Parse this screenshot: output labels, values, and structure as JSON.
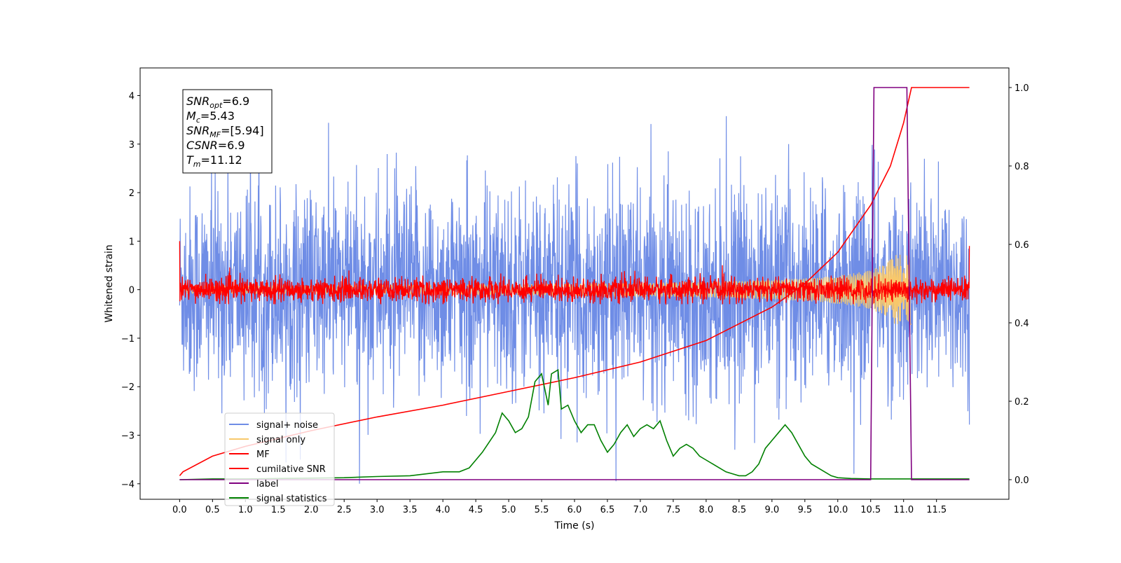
{
  "chart_data": {
    "type": "line",
    "xlabel": "Time (s)",
    "ylabel": "Whitened strain",
    "title": "",
    "xlim": [
      -0.6,
      12.6
    ],
    "ylim": [
      -4.32,
      4.57
    ],
    "y2lim": [
      -0.05,
      1.05
    ],
    "x_ticks": [
      "0.0",
      "0.5",
      "1.0",
      "1.5",
      "2.0",
      "2.5",
      "3.0",
      "3.5",
      "4.0",
      "4.5",
      "5.0",
      "5.5",
      "6.0",
      "6.5",
      "7.0",
      "7.5",
      "8.0",
      "8.5",
      "9.0",
      "9.5",
      "10.0",
      "10.5",
      "11.0",
      "11.5"
    ],
    "y_ticks": [
      "4",
      "3",
      "2",
      "1",
      "0",
      "−1",
      "−2",
      "−3",
      "−4"
    ],
    "y2_ticks": [
      "1.0",
      "0.8",
      "0.6",
      "0.4",
      "0.2",
      "0.0"
    ],
    "annotation": {
      "lines": [
        {
          "base": "SNR",
          "sub": "opt",
          "value": "=6.9"
        },
        {
          "base": "M",
          "sub": "c",
          "value": "=5.43"
        },
        {
          "base": "SNR",
          "sub": "MF",
          "value": "=[5.94]"
        },
        {
          "base": "CSNR",
          "sub": "",
          "value": "=6.9"
        },
        {
          "base": "T",
          "sub": "m",
          "value": "=11.12"
        }
      ]
    },
    "legend": {
      "placement": "lower-left",
      "entries": [
        {
          "label": "signal+ noise",
          "color": "#6f8de6"
        },
        {
          "label": "signal only",
          "color": "#f8c86b"
        },
        {
          "label": "MF",
          "color": "#ff0000"
        },
        {
          "label": "cumilative SNR",
          "color": "#ff0000"
        },
        {
          "label": "label",
          "color": "#800080"
        },
        {
          "label": "signal statistics",
          "color": "#008000"
        }
      ]
    },
    "series": [
      {
        "name": "signal+ noise",
        "axis": "left",
        "color": "#6f8de6",
        "x_range": [
          0.0,
          12.0
        ],
        "approx_std": 1.0,
        "approx_range": [
          -4.0,
          4.2
        ]
      },
      {
        "name": "signal only",
        "axis": "left",
        "color": "#f8c86b",
        "x_range": [
          0.0,
          11.12
        ],
        "approx_peak_amplitude": 0.8
      },
      {
        "name": "MF",
        "axis": "left",
        "color": "#ff0000",
        "x_range": [
          0.0,
          12.0
        ],
        "approx_std": 0.15,
        "approx_range": [
          -0.3,
          1.0
        ]
      },
      {
        "name": "cumilative SNR",
        "axis": "right",
        "color": "#ff0000",
        "x": [
          0.0,
          0.05,
          0.5,
          1.0,
          2.0,
          3.0,
          4.0,
          5.0,
          6.0,
          7.0,
          8.0,
          9.0,
          9.5,
          10.0,
          10.5,
          10.8,
          11.0,
          11.12,
          12.0
        ],
        "values": [
          0.01,
          0.02,
          0.06,
          0.085,
          0.125,
          0.16,
          0.19,
          0.225,
          0.26,
          0.3,
          0.355,
          0.44,
          0.5,
          0.58,
          0.7,
          0.8,
          0.91,
          1.0,
          1.0
        ]
      },
      {
        "name": "label",
        "axis": "right",
        "color": "#800080",
        "x": [
          0.0,
          10.5,
          10.55,
          11.05,
          11.12,
          12.0
        ],
        "values": [
          0.0,
          0.0,
          1.0,
          1.0,
          0.0,
          0.0
        ]
      },
      {
        "name": "signal statistics",
        "axis": "right",
        "color": "#008000",
        "x": [
          0.0,
          0.5,
          1.0,
          1.5,
          2.0,
          2.5,
          3.0,
          3.5,
          4.0,
          4.25,
          4.4,
          4.5,
          4.6,
          4.8,
          4.9,
          5.0,
          5.1,
          5.2,
          5.3,
          5.4,
          5.5,
          5.55,
          5.6,
          5.65,
          5.75,
          5.8,
          5.9,
          6.0,
          6.1,
          6.2,
          6.3,
          6.4,
          6.5,
          6.6,
          6.7,
          6.8,
          6.9,
          7.0,
          7.1,
          7.2,
          7.3,
          7.4,
          7.5,
          7.6,
          7.7,
          7.8,
          7.9,
          8.0,
          8.1,
          8.2,
          8.3,
          8.4,
          8.5,
          8.6,
          8.7,
          8.8,
          8.9,
          9.0,
          9.1,
          9.2,
          9.3,
          9.4,
          9.5,
          9.6,
          9.7,
          9.8,
          9.9,
          10.0,
          10.2,
          10.5,
          10.7,
          11.0,
          11.3,
          12.0
        ],
        "values": [
          0.0,
          0.002,
          0.002,
          0.003,
          0.004,
          0.005,
          0.008,
          0.01,
          0.02,
          0.02,
          0.03,
          0.05,
          0.07,
          0.12,
          0.17,
          0.15,
          0.12,
          0.13,
          0.16,
          0.25,
          0.27,
          0.23,
          0.19,
          0.27,
          0.28,
          0.18,
          0.19,
          0.15,
          0.12,
          0.14,
          0.14,
          0.1,
          0.07,
          0.09,
          0.12,
          0.14,
          0.11,
          0.13,
          0.14,
          0.13,
          0.15,
          0.1,
          0.06,
          0.08,
          0.09,
          0.08,
          0.06,
          0.05,
          0.04,
          0.03,
          0.02,
          0.015,
          0.01,
          0.01,
          0.02,
          0.04,
          0.08,
          0.1,
          0.12,
          0.14,
          0.12,
          0.09,
          0.06,
          0.04,
          0.03,
          0.02,
          0.01,
          0.005,
          0.003,
          0.002,
          0.002,
          0.002,
          0.002,
          0.002
        ]
      }
    ]
  }
}
